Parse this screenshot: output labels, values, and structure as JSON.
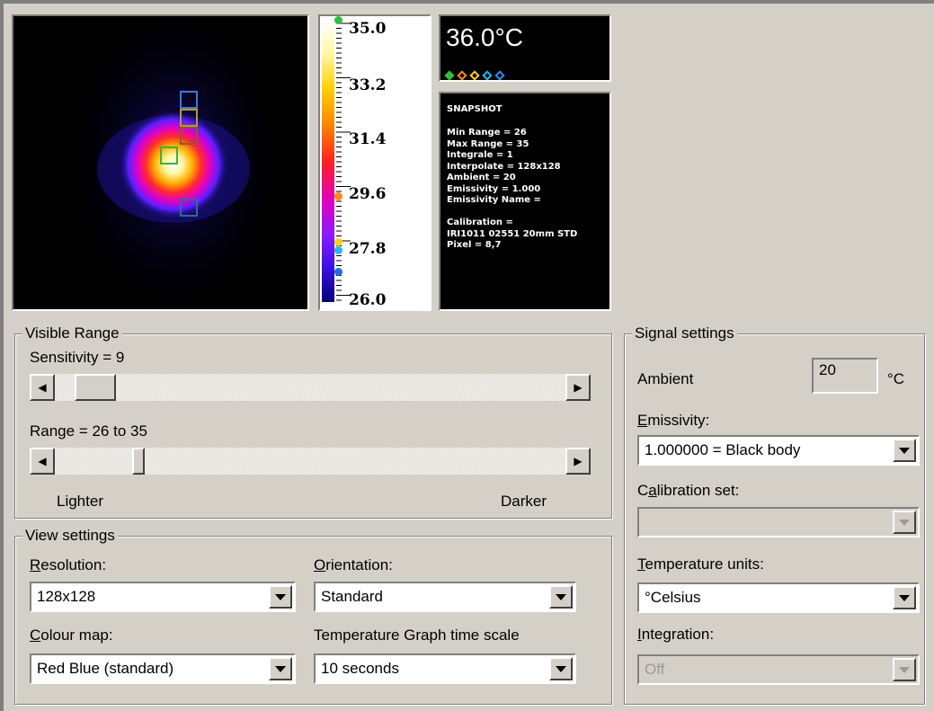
{
  "thermal_view": {
    "roi_colors": [
      "#3b7bd6",
      "#b89a1e",
      "#8a5a2a",
      "#3fae3f",
      "#2f6b8f"
    ]
  },
  "scale": {
    "labels": [
      "35.0",
      "33.2",
      "31.4",
      "29.6",
      "27.8",
      "26.0"
    ],
    "marker_colors": [
      "#2fbf3f",
      "#ff8a1a",
      "#ffd21a",
      "#29b6f6",
      "#1e6fe0"
    ]
  },
  "temperature": {
    "reading": "36.0°C",
    "dot_colors": [
      "#2fbf3f",
      "#ff8a1a",
      "#ffd21a",
      "#29b6f6",
      "#2f8fff"
    ]
  },
  "snapshot": {
    "title": "SNAPSHOT",
    "lines": [
      "Min Range = 26",
      "Max Range = 35",
      "Integrale = 1",
      "Interpolate = 128x128",
      "Ambient = 20",
      "Emissivity = 1.000",
      "Emissivity Name =",
      "",
      "Calibration =",
      "IRI1011 02551 20mm STD",
      "Pixel = 8,7"
    ]
  },
  "visible_range": {
    "title": "Visible Range",
    "sensitivity_label": "Sensitivity = 9",
    "range_label": "Range = 26 to 35",
    "lighter": "Lighter",
    "darker": "Darker"
  },
  "view_settings": {
    "title": "View settings",
    "resolution_label": "Resolution:",
    "resolution_value": "128x128",
    "orientation_label": "Orientation:",
    "orientation_value": "Standard",
    "colour_map_label": "Colour map:",
    "colour_map_value": "Red Blue (standard)",
    "graph_time_label": "Temperature Graph time scale",
    "graph_time_value": "10 seconds"
  },
  "signal_settings": {
    "title": "Signal settings",
    "ambient_label": "Ambient",
    "ambient_value": "20",
    "ambient_unit": "°C",
    "emissivity_label": "Emissivity:",
    "emissivity_value": "1.000000 = Black body",
    "calibration_label": "Calibration set:",
    "calibration_value": "",
    "temp_units_label": "Temperature units:",
    "temp_units_value": "°Celsius",
    "integration_label": "Integration:",
    "integration_value": "Off"
  },
  "icons": {
    "scroll_left": "◀",
    "scroll_right": "▶",
    "dropdown": "chevron-down-icon"
  }
}
